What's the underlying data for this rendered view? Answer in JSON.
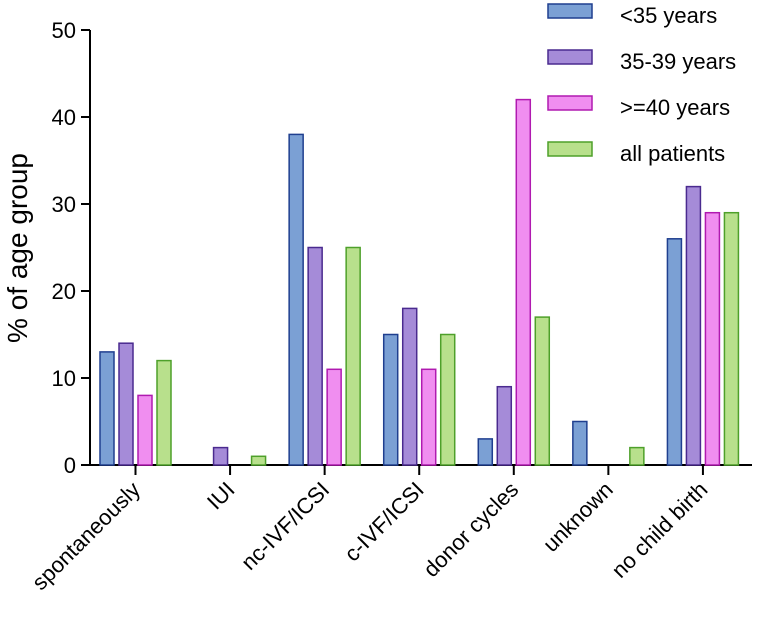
{
  "chart_data": {
    "type": "bar",
    "title": "",
    "xlabel": "",
    "ylabel": "% of age group",
    "ylim": [
      0,
      50
    ],
    "yticks": [
      "0",
      "10",
      "20",
      "30",
      "40",
      "50"
    ],
    "categories": [
      "spontaneously",
      "IUI",
      "nc-IVF/ICSI",
      "c-IVF/ICSI",
      "donor cycles",
      "unknown",
      "no child birth"
    ],
    "series": [
      {
        "name": "<35 years",
        "fill": "#7ba0d4",
        "stroke": "#1f3f8f",
        "values": [
          13,
          0,
          38,
          15,
          3,
          5,
          26
        ]
      },
      {
        "name": "35-39 years",
        "fill": "#a58bd8",
        "stroke": "#4a2a8f",
        "values": [
          14,
          2,
          25,
          18,
          9,
          0,
          32
        ]
      },
      {
        "name": ">=40 years",
        "fill": "#f08ef0",
        "stroke": "#b01ab0",
        "values": [
          8,
          0,
          11,
          11,
          42,
          0,
          29
        ]
      },
      {
        "name": "all patients",
        "fill": "#b8e08c",
        "stroke": "#4ea02a",
        "values": [
          12,
          1,
          25,
          15,
          17,
          2,
          29
        ]
      }
    ],
    "legend_position": "top-right",
    "grid": false
  }
}
